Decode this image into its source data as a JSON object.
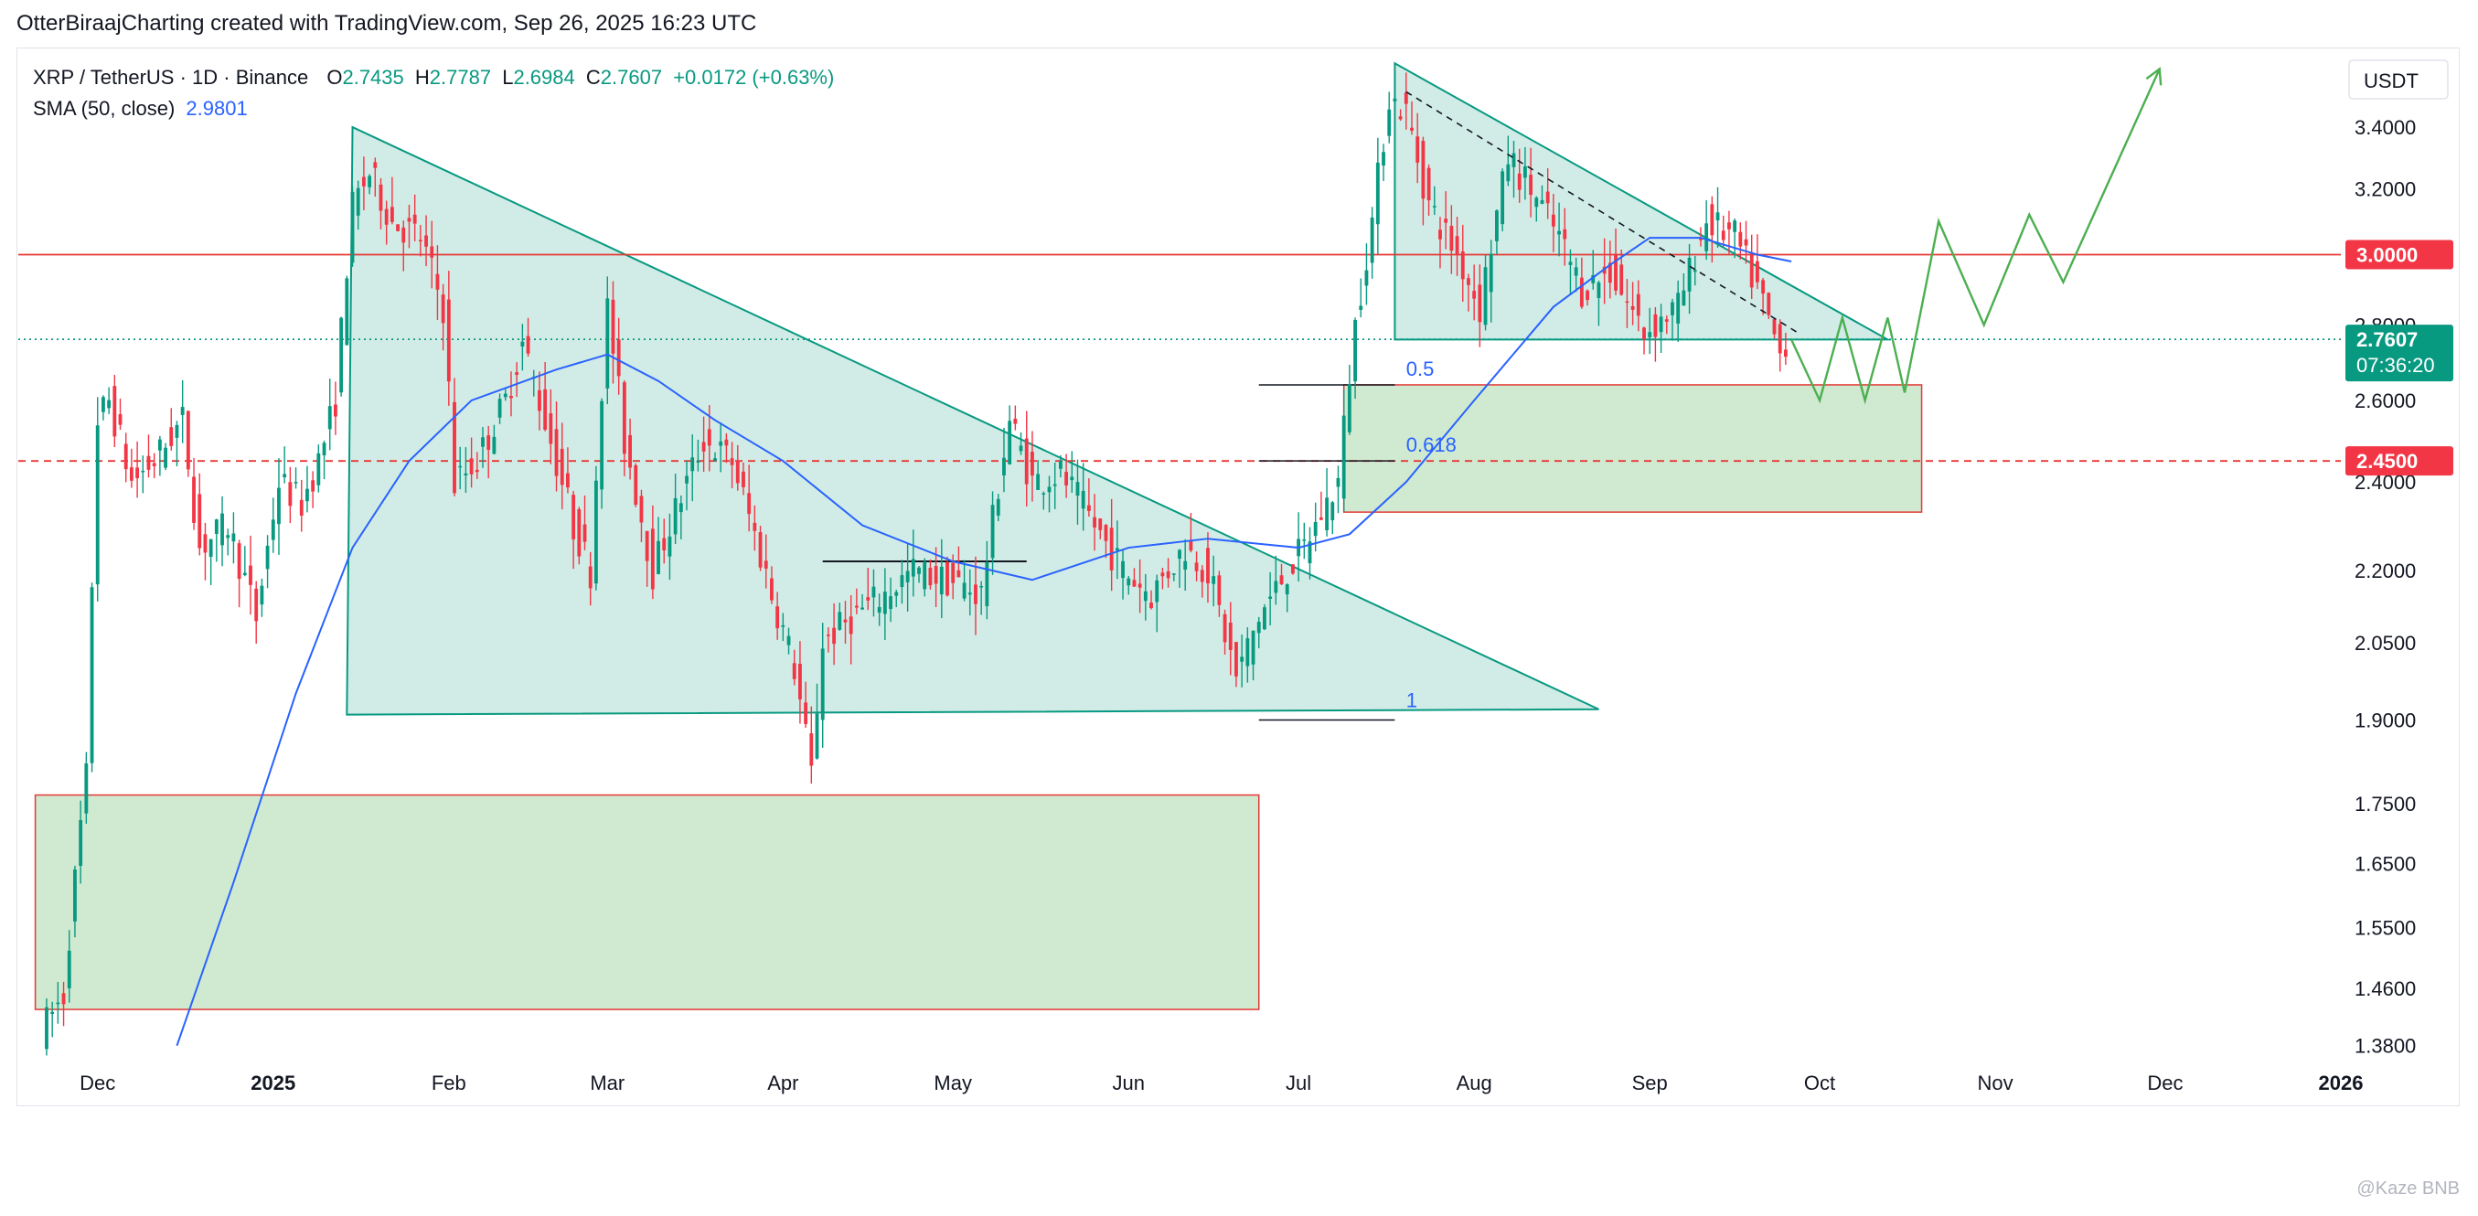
{
  "header": {
    "text": "OtterBiraajCharting created with TradingView.com, Sep 26, 2025 16:23 UTC"
  },
  "symbol": {
    "name": "XRP / TetherUS · 1D · Binance",
    "o_label": "O",
    "o": "2.7435",
    "h_label": "H",
    "h": "2.7787",
    "l_label": "L",
    "l": "2.6984",
    "c_label": "C",
    "c": "2.7607",
    "change": "+0.0172 (+0.63%)",
    "sma_label": "SMA (50, close)",
    "sma_value": "2.9801"
  },
  "currency": "USDT",
  "watermark": "@Kaze BNB",
  "colors": {
    "up": "#089981",
    "down": "#f23645",
    "sma": "#2962ff",
    "triangle_fill": "#b2dfd6",
    "zone_fill": "#c8e6c9",
    "level_red": "#e53935",
    "projection": "#4caf50"
  },
  "chart_data": {
    "type": "candlestick",
    "title": "XRP / TetherUS · 1D · Binance",
    "x_axis": {
      "ticks": [
        "Dec",
        "2025",
        "Feb",
        "Mar",
        "Apr",
        "May",
        "Jun",
        "Jul",
        "Aug",
        "Sep",
        "Oct",
        "Nov",
        "Dec",
        "2026"
      ]
    },
    "y_axis": {
      "scale": "log",
      "unit": "USDT",
      "ticks": [
        "3.4000",
        "3.2000",
        "2.8000",
        "2.6000",
        "2.4000",
        "2.2000",
        "2.0500",
        "1.9000",
        "1.7500",
        "1.6500",
        "1.5500",
        "1.4600",
        "1.3800"
      ],
      "range": [
        1.36,
        3.65
      ]
    },
    "series": [
      {
        "name": "XRP / TetherUS · 1D · Binance",
        "path": [
          [
            "2024-11-22",
            1.4
          ],
          [
            "2024-11-26",
            1.45
          ],
          [
            "2024-11-30",
            1.8
          ],
          [
            "2024-12-02",
            2.55
          ],
          [
            "2024-12-04",
            2.6
          ],
          [
            "2024-12-08",
            2.4
          ],
          [
            "2024-12-12",
            2.45
          ],
          [
            "2024-12-17",
            2.55
          ],
          [
            "2024-12-20",
            2.25
          ],
          [
            "2024-12-25",
            2.3
          ],
          [
            "2024-12-30",
            2.1
          ],
          [
            "2025-01-03",
            2.4
          ],
          [
            "2025-01-07",
            2.35
          ],
          [
            "2025-01-10",
            2.45
          ],
          [
            "2025-01-13",
            2.6
          ],
          [
            "2025-01-16",
            3.15
          ],
          [
            "2025-01-19",
            3.25
          ],
          [
            "2025-01-23",
            3.1
          ],
          [
            "2025-01-28",
            3.05
          ],
          [
            "2025-02-01",
            2.85
          ],
          [
            "2025-02-03",
            2.4
          ],
          [
            "2025-02-07",
            2.45
          ],
          [
            "2025-02-12",
            2.6
          ],
          [
            "2025-02-15",
            2.75
          ],
          [
            "2025-02-18",
            2.6
          ],
          [
            "2025-02-24",
            2.3
          ],
          [
            "2025-02-27",
            2.2
          ],
          [
            "2025-03-02",
            2.85
          ],
          [
            "2025-03-05",
            2.5
          ],
          [
            "2025-03-10",
            2.2
          ],
          [
            "2025-03-13",
            2.3
          ],
          [
            "2025-03-19",
            2.5
          ],
          [
            "2025-03-24",
            2.45
          ],
          [
            "2025-03-31",
            2.15
          ],
          [
            "2025-04-04",
            2.0
          ],
          [
            "2025-04-07",
            1.8
          ],
          [
            "2025-04-09",
            2.05
          ],
          [
            "2025-04-14",
            2.1
          ],
          [
            "2025-04-20",
            2.15
          ],
          [
            "2025-04-25",
            2.2
          ],
          [
            "2025-05-01",
            2.18
          ],
          [
            "2025-05-07",
            2.15
          ],
          [
            "2025-05-12",
            2.55
          ],
          [
            "2025-05-16",
            2.4
          ],
          [
            "2025-05-21",
            2.42
          ],
          [
            "2025-05-27",
            2.3
          ],
          [
            "2025-06-01",
            2.2
          ],
          [
            "2025-06-06",
            2.15
          ],
          [
            "2025-06-12",
            2.25
          ],
          [
            "2025-06-16",
            2.2
          ],
          [
            "2025-06-21",
            1.98
          ],
          [
            "2025-06-25",
            2.1
          ],
          [
            "2025-06-30",
            2.2
          ],
          [
            "2025-07-03",
            2.25
          ],
          [
            "2025-07-09",
            2.4
          ],
          [
            "2025-07-12",
            2.8
          ],
          [
            "2025-07-15",
            3.1
          ],
          [
            "2025-07-18",
            3.5
          ],
          [
            "2025-07-21",
            3.45
          ],
          [
            "2025-07-25",
            3.15
          ],
          [
            "2025-07-30",
            3.0
          ],
          [
            "2025-08-03",
            2.85
          ],
          [
            "2025-08-08",
            3.3
          ],
          [
            "2025-08-12",
            3.2
          ],
          [
            "2025-08-17",
            3.05
          ],
          [
            "2025-08-21",
            2.9
          ],
          [
            "2025-08-26",
            2.95
          ],
          [
            "2025-09-01",
            2.78
          ],
          [
            "2025-09-07",
            2.85
          ],
          [
            "2025-09-12",
            3.1
          ],
          [
            "2025-09-17",
            3.05
          ],
          [
            "2025-09-21",
            2.9
          ],
          [
            "2025-09-25",
            2.72
          ],
          [
            "2025-09-26",
            2.76
          ]
        ]
      },
      {
        "name": "SMA (50, close)",
        "path": [
          [
            "2024-12-15",
            1.38
          ],
          [
            "2024-12-25",
            1.62
          ],
          [
            "2025-01-05",
            1.95
          ],
          [
            "2025-01-15",
            2.25
          ],
          [
            "2025-01-25",
            2.45
          ],
          [
            "2025-02-05",
            2.6
          ],
          [
            "2025-02-20",
            2.68
          ],
          [
            "2025-03-01",
            2.72
          ],
          [
            "2025-03-10",
            2.65
          ],
          [
            "2025-03-20",
            2.55
          ],
          [
            "2025-04-01",
            2.45
          ],
          [
            "2025-04-15",
            2.3
          ],
          [
            "2025-05-01",
            2.22
          ],
          [
            "2025-05-15",
            2.18
          ],
          [
            "2025-06-01",
            2.25
          ],
          [
            "2025-06-15",
            2.27
          ],
          [
            "2025-07-01",
            2.25
          ],
          [
            "2025-07-10",
            2.28
          ],
          [
            "2025-07-20",
            2.4
          ],
          [
            "2025-08-01",
            2.6
          ],
          [
            "2025-08-15",
            2.85
          ],
          [
            "2025-08-25",
            2.97
          ],
          [
            "2025-09-01",
            3.05
          ],
          [
            "2025-09-10",
            3.05
          ],
          [
            "2025-09-20",
            3.0
          ],
          [
            "2025-09-26",
            2.98
          ]
        ]
      }
    ],
    "levels": [
      {
        "label": "3.0000",
        "value": 3.0,
        "style": "solid",
        "color": "#e53935"
      },
      {
        "label": "2.4500",
        "value": 2.45,
        "style": "dashed",
        "color": "#e53935"
      },
      {
        "label": "2.7607",
        "time": "07:36:20",
        "value": 2.7607,
        "style": "dotted",
        "color": "#089981"
      }
    ],
    "fib_labels": [
      "0.5",
      "0.618",
      "1"
    ],
    "projection": [
      [
        "2025-09-26",
        2.76
      ],
      [
        "2025-10-01",
        2.6
      ],
      [
        "2025-10-05",
        2.82
      ],
      [
        "2025-10-09",
        2.6
      ],
      [
        "2025-10-13",
        2.82
      ],
      [
        "2025-10-16",
        2.62
      ],
      [
        "2025-10-22",
        3.1
      ],
      [
        "2025-10-30",
        2.8
      ],
      [
        "2025-11-07",
        3.12
      ],
      [
        "2025-11-13",
        2.92
      ],
      [
        "2025-11-30",
        3.6
      ]
    ]
  }
}
